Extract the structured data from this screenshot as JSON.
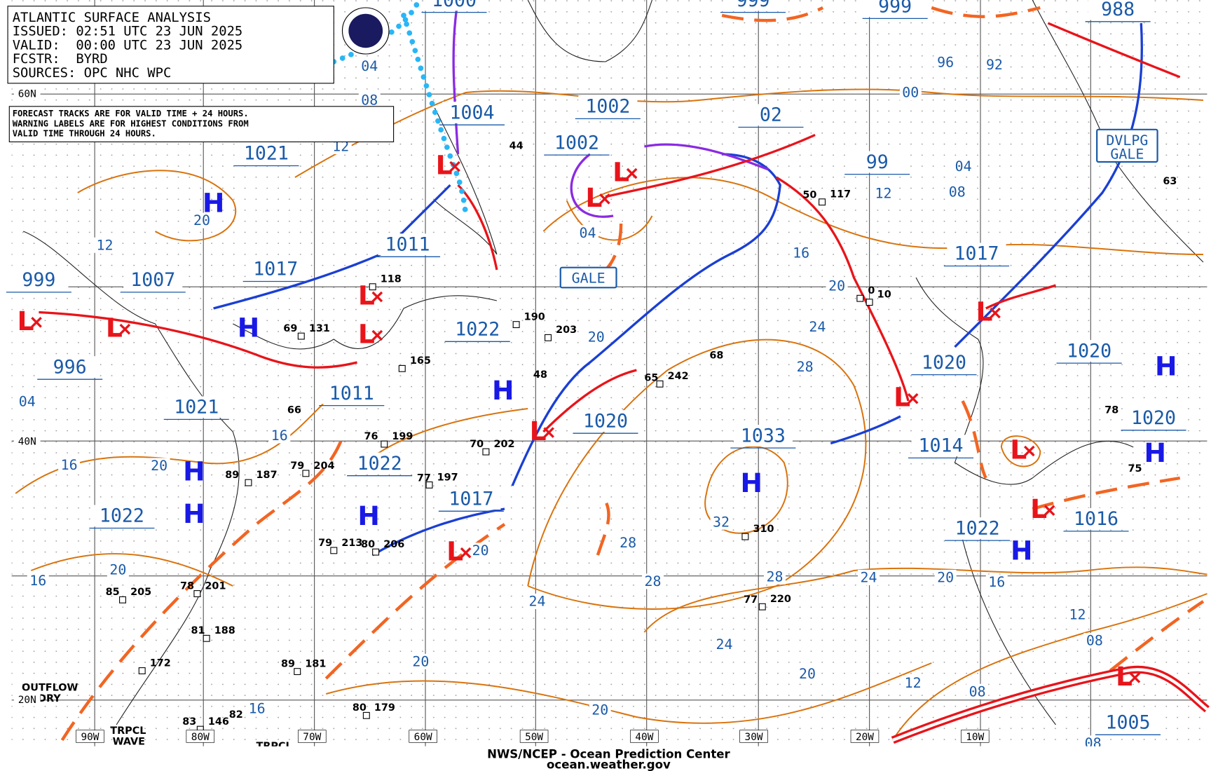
{
  "header": {
    "title": "ATLANTIC SURFACE ANALYSIS",
    "issued": "ISSUED: 02:51 UTC 23 JUN 2025",
    "valid": "VALID:  00:00 UTC 23 JUN 2025",
    "forecaster": "FCSTR:  BYRD",
    "sources": "SOURCES: OPC NHC WPC"
  },
  "note": [
    "FORECAST TRACKS ARE FOR VALID TIME + 24 HOURS.",
    "WARNING LABELS ARE FOR HIGHEST CONDITIONS FROM",
    "VALID TIME THROUGH 24 HOURS."
  ],
  "pressure_labels": [
    "1000",
    "1004",
    "1002",
    "1002",
    "999",
    "999",
    "988",
    "1021",
    "1007",
    "1017",
    "1011",
    "999",
    "996",
    "1021",
    "1011",
    "1022",
    "1020",
    "1033",
    "1022",
    "1017",
    "1022",
    "1020",
    "1014",
    "1017",
    "1020",
    "1020",
    "1022",
    "1016",
    "1005",
    "99",
    "02"
  ],
  "isobar_labels": [
    "04",
    "08",
    "12",
    "12",
    "20",
    "04",
    "00",
    "96",
    "92",
    "04",
    "08",
    "12",
    "16",
    "20",
    "24",
    "28",
    "20",
    "04",
    "16",
    "16",
    "20",
    "20",
    "16",
    "20",
    "28",
    "28",
    "28",
    "24",
    "20",
    "16",
    "32",
    "24",
    "24",
    "20",
    "20",
    "20",
    "12",
    "08",
    "12",
    "08",
    "08",
    "16"
  ],
  "high_centers": [
    "H",
    "H",
    "H",
    "H",
    "H",
    "H",
    "H",
    "H",
    "H",
    "H"
  ],
  "low_centers": [
    "L",
    "L",
    "L",
    "L",
    "L",
    "L",
    "L",
    "L",
    "L",
    "L",
    "L",
    "L",
    "L",
    "L"
  ],
  "warnings": [
    "GALE",
    "DVLPG",
    "GALE"
  ],
  "station_pressures": [
    "118",
    "131",
    "190",
    "203",
    "199",
    "242",
    "310",
    "220",
    "197",
    "202",
    "204",
    "213",
    "206",
    "187",
    "165",
    "117",
    "205",
    "201",
    "188",
    "172",
    "181",
    "179",
    "146",
    "0",
    "10"
  ],
  "station_temps": [
    "69",
    "76",
    "66",
    "79",
    "89",
    "77",
    "70",
    "79",
    "80",
    "65",
    "68",
    "50",
    "44",
    "48",
    "77",
    "78",
    "85",
    "83",
    "82",
    "80",
    "89",
    "81",
    "63",
    "75",
    "78"
  ],
  "small_labels": [
    "OUTFLOW",
    "BNDRY",
    "TRPCL",
    "WAVE",
    "TRPCL"
  ],
  "longitude_labels": [
    "90W",
    "80W",
    "70W",
    "60W",
    "50W",
    "40W",
    "30W",
    "20W",
    "10W"
  ],
  "latitude_labels": [
    "60N",
    "40N",
    "20N"
  ],
  "footer": [
    "NWS/NCEP - Ocean Prediction Center",
    "ocean.weather.gov"
  ]
}
